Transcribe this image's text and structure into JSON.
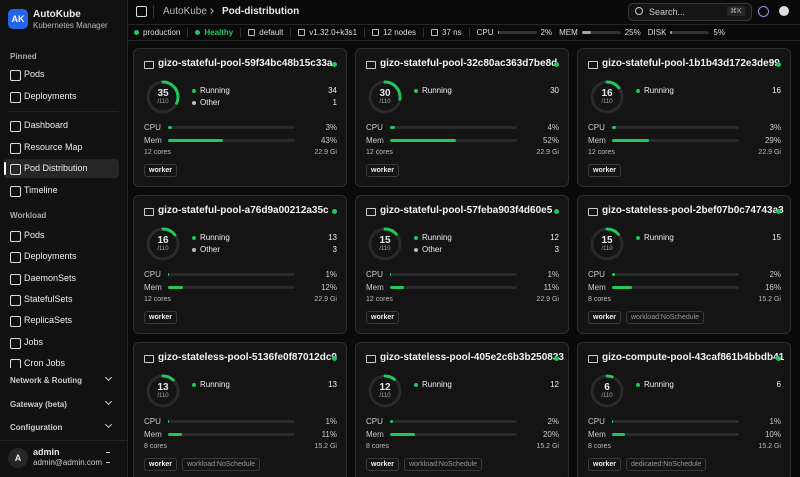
{
  "sidebar": {
    "logo": "AK",
    "app_name": "AutoKube",
    "app_subtitle": "Kubernetes Manager",
    "pinned_label": "Pinned",
    "pinned": [
      "Pods",
      "Deployments"
    ],
    "main": [
      "Dashboard",
      "Resource Map",
      "Pod Distribution",
      "Timeline"
    ],
    "active": "Pod Distribution",
    "workload_label": "Workload",
    "workload": [
      "Pods",
      "Deployments",
      "DaemonSets",
      "StatefulSets",
      "ReplicaSets",
      "Jobs",
      "Cron Jobs"
    ],
    "groups": [
      "Network & Routing",
      "Gateway (beta)",
      "Configuration"
    ],
    "user": {
      "initial": "A",
      "name": "admin",
      "email": "admin@admin.com"
    }
  },
  "topbar": {
    "breadcrumb": [
      "AutoKube",
      "Pod-distribution"
    ],
    "search": "Search...",
    "shortcut": "⌘K"
  },
  "statusbar": {
    "cluster": "production",
    "health": "Healthy",
    "namespace": "default",
    "version": "v1.32.0+k3s1",
    "nodes": "12 nodes",
    "namespaces": "37 ns",
    "meters": [
      {
        "name": "CPU",
        "value": 2,
        "label": "2%"
      },
      {
        "name": "MEM",
        "value": 25,
        "label": "25%"
      },
      {
        "name": "DISK",
        "value": 5,
        "label": "5%"
      }
    ]
  },
  "nodes": [
    {
      "name": "gizo-stateful-pool-59f34bc48b15c33a",
      "pods": 35,
      "capacity": {
        "value": 110,
        "label": "/110"
      },
      "statuses": [
        {
          "name": "Running",
          "count": 34
        },
        {
          "name": "Other",
          "count": 1
        }
      ],
      "cpu": {
        "name": "CPU",
        "value": 3,
        "label": "3%"
      },
      "mem": {
        "name": "Mem",
        "value": 43,
        "label": "43%"
      },
      "cores": "12 cores",
      "memory": "22.9 Gi",
      "tags": [
        "worker"
      ]
    },
    {
      "name": "gizo-stateful-pool-32c80ac363d7be8d",
      "pods": 30,
      "capacity": {
        "value": 110,
        "label": "/110"
      },
      "statuses": [
        {
          "name": "Running",
          "count": 30
        }
      ],
      "cpu": {
        "name": "CPU",
        "value": 4,
        "label": "4%"
      },
      "mem": {
        "name": "Mem",
        "value": 52,
        "label": "52%"
      },
      "cores": "12 cores",
      "memory": "22.9 Gi",
      "tags": [
        "worker"
      ]
    },
    {
      "name": "gizo-stateful-pool-1b1b43d172e3de99",
      "pods": 16,
      "capacity": {
        "value": 110,
        "label": "/110"
      },
      "statuses": [
        {
          "name": "Running",
          "count": 16
        }
      ],
      "cpu": {
        "name": "CPU",
        "value": 3,
        "label": "3%"
      },
      "mem": {
        "name": "Mem",
        "value": 29,
        "label": "29%"
      },
      "cores": "12 cores",
      "memory": "22.9 Gi",
      "tags": [
        "worker"
      ]
    },
    {
      "name": "gizo-stateful-pool-a76d9a00212a35c",
      "pods": 16,
      "capacity": {
        "value": 110,
        "label": "/110"
      },
      "statuses": [
        {
          "name": "Running",
          "count": 13
        },
        {
          "name": "Other",
          "count": 3
        }
      ],
      "cpu": {
        "name": "CPU",
        "value": 1,
        "label": "1%"
      },
      "mem": {
        "name": "Mem",
        "value": 12,
        "label": "12%"
      },
      "cores": "12 cores",
      "memory": "22.9 Gi",
      "tags": [
        "worker"
      ]
    },
    {
      "name": "gizo-stateful-pool-57feba903f4d60e5",
      "pods": 15,
      "capacity": {
        "value": 110,
        "label": "/110"
      },
      "statuses": [
        {
          "name": "Running",
          "count": 12
        },
        {
          "name": "Other",
          "count": 3
        }
      ],
      "cpu": {
        "name": "CPU",
        "value": 1,
        "label": "1%"
      },
      "mem": {
        "name": "Mem",
        "value": 11,
        "label": "11%"
      },
      "cores": "12 cores",
      "memory": "22.9 Gi",
      "tags": [
        "worker"
      ]
    },
    {
      "name": "gizo-stateless-pool-2bef07b0c74743a3",
      "pods": 15,
      "capacity": {
        "value": 110,
        "label": "/110"
      },
      "statuses": [
        {
          "name": "Running",
          "count": 15
        }
      ],
      "cpu": {
        "name": "CPU",
        "value": 2,
        "label": "2%"
      },
      "mem": {
        "name": "Mem",
        "value": 16,
        "label": "16%"
      },
      "cores": "8 cores",
      "memory": "15.2 Gi",
      "tags": [
        "worker",
        "workload:NoSchedule"
      ]
    },
    {
      "name": "gizo-stateless-pool-5136fe0f87012dc9",
      "pods": 13,
      "capacity": {
        "value": 110,
        "label": "/110"
      },
      "statuses": [
        {
          "name": "Running",
          "count": 13
        }
      ],
      "cpu": {
        "name": "CPU",
        "value": 1,
        "label": "1%"
      },
      "mem": {
        "name": "Mem",
        "value": 11,
        "label": "11%"
      },
      "cores": "8 cores",
      "memory": "15.2 Gi",
      "tags": [
        "worker",
        "workload:NoSchedule"
      ]
    },
    {
      "name": "gizo-stateless-pool-405e2c6b3b250833",
      "pods": 12,
      "capacity": {
        "value": 110,
        "label": "/110"
      },
      "statuses": [
        {
          "name": "Running",
          "count": 12
        }
      ],
      "cpu": {
        "name": "CPU",
        "value": 2,
        "label": "2%"
      },
      "mem": {
        "name": "Mem",
        "value": 20,
        "label": "20%"
      },
      "cores": "8 cores",
      "memory": "15.2 Gi",
      "tags": [
        "worker",
        "workload:NoSchedule"
      ]
    },
    {
      "name": "gizo-compute-pool-43caf861b4bbdb41",
      "pods": 6,
      "capacity": {
        "value": 110,
        "label": "/110"
      },
      "statuses": [
        {
          "name": "Running",
          "count": 6
        }
      ],
      "cpu": {
        "name": "CPU",
        "value": 1,
        "label": "1%"
      },
      "mem": {
        "name": "Mem",
        "value": 10,
        "label": "10%"
      },
      "cores": "8 cores",
      "memory": "15.2 Gi",
      "tags": [
        "worker",
        "dedicated:NoSchedule"
      ]
    }
  ]
}
